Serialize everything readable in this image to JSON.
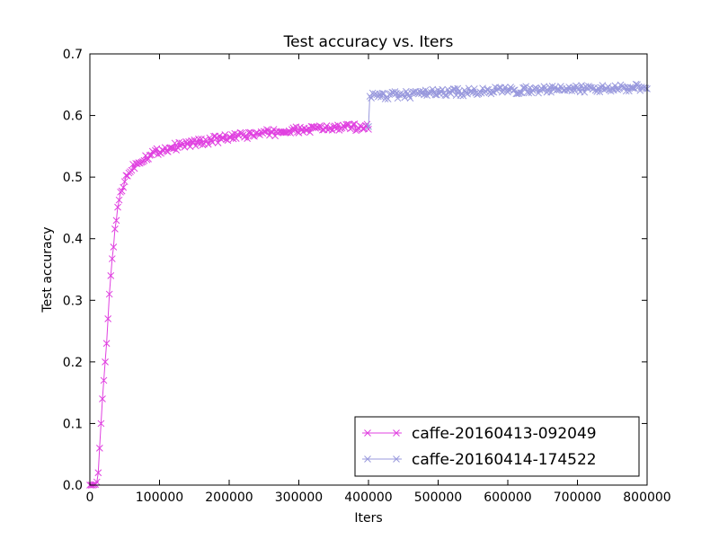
{
  "chart_data": {
    "type": "line",
    "title": "Test accuracy  vs. Iters",
    "xlabel": "Iters",
    "ylabel": "Test accuracy",
    "xlim": [
      0,
      800000
    ],
    "ylim": [
      0.0,
      0.7
    ],
    "xticks": [
      0,
      100000,
      200000,
      300000,
      400000,
      500000,
      600000,
      700000,
      800000
    ],
    "xtick_labels": [
      "0",
      "100000",
      "200000",
      "300000",
      "400000",
      "500000",
      "600000",
      "700000",
      "800000"
    ],
    "yticks": [
      0.0,
      0.1,
      0.2,
      0.3,
      0.4,
      0.5,
      0.6,
      0.7
    ],
    "ytick_labels": [
      "0.0",
      "0.1",
      "0.2",
      "0.3",
      "0.4",
      "0.5",
      "0.6",
      "0.7"
    ],
    "grid": false,
    "legend_position": "bottom-right",
    "marker": "x",
    "series": [
      {
        "name": "caffe-20160413-092049",
        "color": "#e040e0",
        "points": [
          [
            0,
            0.0
          ],
          [
            4000,
            0.0
          ],
          [
            8000,
            0.001
          ],
          [
            10000,
            0.005
          ],
          [
            12000,
            0.02
          ],
          [
            14000,
            0.06
          ],
          [
            16000,
            0.1
          ],
          [
            18000,
            0.14
          ],
          [
            20000,
            0.17
          ],
          [
            22000,
            0.2
          ],
          [
            24000,
            0.23
          ],
          [
            26000,
            0.27
          ],
          [
            28000,
            0.31
          ],
          [
            30000,
            0.34
          ],
          [
            32000,
            0.37
          ],
          [
            35000,
            0.4
          ],
          [
            38000,
            0.43
          ],
          [
            40000,
            0.45
          ],
          [
            43000,
            0.47
          ],
          [
            46000,
            0.48
          ],
          [
            50000,
            0.495
          ],
          [
            55000,
            0.505
          ],
          [
            60000,
            0.515
          ],
          [
            70000,
            0.525
          ],
          [
            80000,
            0.532
          ],
          [
            90000,
            0.538
          ],
          [
            100000,
            0.543
          ],
          [
            120000,
            0.549
          ],
          [
            140000,
            0.554
          ],
          [
            160000,
            0.557
          ],
          [
            180000,
            0.561
          ],
          [
            200000,
            0.564
          ],
          [
            220000,
            0.567
          ],
          [
            240000,
            0.57
          ],
          [
            260000,
            0.572
          ],
          [
            280000,
            0.574
          ],
          [
            300000,
            0.576
          ],
          [
            320000,
            0.578
          ],
          [
            340000,
            0.579
          ],
          [
            360000,
            0.58
          ],
          [
            380000,
            0.581
          ],
          [
            398000,
            0.582
          ],
          [
            400000,
            0.582
          ]
        ]
      },
      {
        "name": "caffe-20160414-174522",
        "color": "#9999dd",
        "points": [
          [
            400000,
            0.582
          ],
          [
            402000,
            0.632
          ],
          [
            420000,
            0.632
          ],
          [
            440000,
            0.633
          ],
          [
            460000,
            0.634
          ],
          [
            480000,
            0.636
          ],
          [
            500000,
            0.637
          ],
          [
            520000,
            0.638
          ],
          [
            540000,
            0.638
          ],
          [
            560000,
            0.639
          ],
          [
            580000,
            0.64
          ],
          [
            600000,
            0.641
          ],
          [
            620000,
            0.641
          ],
          [
            640000,
            0.642
          ],
          [
            660000,
            0.642
          ],
          [
            680000,
            0.643
          ],
          [
            700000,
            0.643
          ],
          [
            720000,
            0.644
          ],
          [
            740000,
            0.644
          ],
          [
            760000,
            0.644
          ],
          [
            780000,
            0.645
          ],
          [
            800000,
            0.645
          ]
        ]
      }
    ]
  }
}
